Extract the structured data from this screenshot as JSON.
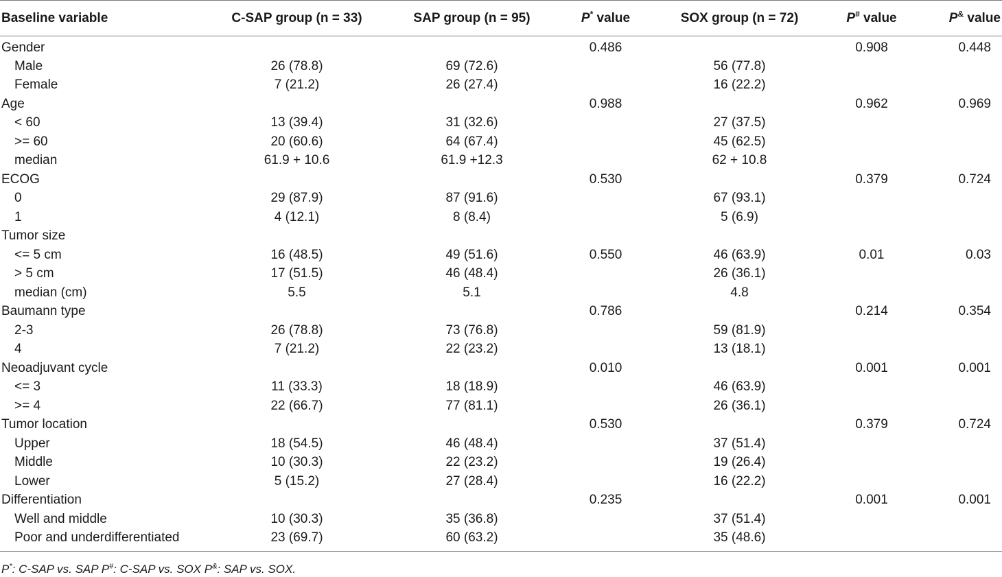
{
  "table": {
    "headers": {
      "variable": "Baseline variable",
      "csap": "C-SAP group (n = 33)",
      "sap": "SAP group (n = 95)",
      "p_star_p": "P",
      "p_star_sup": "*",
      "p_star_tail": " value",
      "sox": "SOX group (n = 72)",
      "p_hash_p": "P",
      "p_hash_sup": "#",
      "p_hash_tail": " value",
      "p_amp_p": "P",
      "p_amp_sup": "&",
      "p_amp_tail": " value"
    },
    "rows": [
      {
        "label": "Gender",
        "sub": false,
        "csap": "",
        "sap": "",
        "p1": "0.486",
        "sox": "",
        "p2": "0.908",
        "p3": "0.448"
      },
      {
        "label": "Male",
        "sub": true,
        "csap": "26 (78.8)",
        "sap": "69 (72.6)",
        "p1": "",
        "sox": "56 (77.8)",
        "p2": "",
        "p3": ""
      },
      {
        "label": "Female",
        "sub": true,
        "csap": "7 (21.2)",
        "sap": "26 (27.4)",
        "p1": "",
        "sox": "16 (22.2)",
        "p2": "",
        "p3": ""
      },
      {
        "label": "Age",
        "sub": false,
        "csap": "",
        "sap": "",
        "p1": "0.988",
        "sox": "",
        "p2": "0.962",
        "p3": "0.969"
      },
      {
        "label": "< 60",
        "sub": true,
        "csap": "13 (39.4)",
        "sap": "31 (32.6)",
        "p1": "",
        "sox": "27 (37.5)",
        "p2": "",
        "p3": ""
      },
      {
        "label": ">= 60",
        "sub": true,
        "csap": "20 (60.6)",
        "sap": "64 (67.4)",
        "p1": "",
        "sox": "45 (62.5)",
        "p2": "",
        "p3": ""
      },
      {
        "label": "median",
        "sub": true,
        "csap": "61.9 + 10.6",
        "sap": "61.9 +12.3",
        "p1": "",
        "sox": "62 + 10.8",
        "p2": "",
        "p3": ""
      },
      {
        "label": "ECOG",
        "sub": false,
        "csap": "",
        "sap": "",
        "p1": "0.530",
        "sox": "",
        "p2": "0.379",
        "p3": "0.724"
      },
      {
        "label": "0",
        "sub": true,
        "csap": "29 (87.9)",
        "sap": "87 (91.6)",
        "p1": "",
        "sox": "67 (93.1)",
        "p2": "",
        "p3": ""
      },
      {
        "label": "1",
        "sub": true,
        "csap": "4 (12.1)",
        "sap": "8 (8.4)",
        "p1": "",
        "sox": "5 (6.9)",
        "p2": "",
        "p3": ""
      },
      {
        "label": "Tumor size",
        "sub": false,
        "csap": "",
        "sap": "",
        "p1": "",
        "sox": "",
        "p2": "",
        "p3": ""
      },
      {
        "label": "<= 5 cm",
        "sub": true,
        "csap": "16 (48.5)",
        "sap": "49 (51.6)",
        "p1": "0.550",
        "sox": "46 (63.9)",
        "p2": "0.01",
        "p3": "0.03"
      },
      {
        "label": "> 5 cm",
        "sub": true,
        "csap": "17 (51.5)",
        "sap": "46 (48.4)",
        "p1": "",
        "sox": "26 (36.1)",
        "p2": "",
        "p3": ""
      },
      {
        "label": "median (cm)",
        "sub": true,
        "csap": "5.5",
        "sap": "5.1",
        "p1": "",
        "sox": "4.8",
        "p2": "",
        "p3": ""
      },
      {
        "label": "Baumann type",
        "sub": false,
        "csap": "",
        "sap": "",
        "p1": "0.786",
        "sox": "",
        "p2": "0.214",
        "p3": "0.354"
      },
      {
        "label": "2-3",
        "sub": true,
        "csap": "26 (78.8)",
        "sap": "73 (76.8)",
        "p1": "",
        "sox": "59 (81.9)",
        "p2": "",
        "p3": ""
      },
      {
        "label": "4",
        "sub": true,
        "csap": "7 (21.2)",
        "sap": "22 (23.2)",
        "p1": "",
        "sox": "13 (18.1)",
        "p2": "",
        "p3": ""
      },
      {
        "label": "Neoadjuvant cycle",
        "sub": false,
        "csap": "",
        "sap": "",
        "p1": "0.010",
        "sox": "",
        "p2": "0.001",
        "p3": "0.001"
      },
      {
        "label": "<= 3",
        "sub": true,
        "csap": "11 (33.3)",
        "sap": "18 (18.9)",
        "p1": "",
        "sox": "46 (63.9)",
        "p2": "",
        "p3": ""
      },
      {
        "label": ">= 4",
        "sub": true,
        "csap": "22 (66.7)",
        "sap": "77 (81.1)",
        "p1": "",
        "sox": "26 (36.1)",
        "p2": "",
        "p3": ""
      },
      {
        "label": "Tumor location",
        "sub": false,
        "csap": "",
        "sap": "",
        "p1": "0.530",
        "sox": "",
        "p2": "0.379",
        "p3": "0.724"
      },
      {
        "label": "Upper",
        "sub": true,
        "csap": "18 (54.5)",
        "sap": "46 (48.4)",
        "p1": "",
        "sox": "37 (51.4)",
        "p2": "",
        "p3": ""
      },
      {
        "label": "Middle",
        "sub": true,
        "csap": "10 (30.3)",
        "sap": "22 (23.2)",
        "p1": "",
        "sox": "19 (26.4)",
        "p2": "",
        "p3": ""
      },
      {
        "label": "Lower",
        "sub": true,
        "csap": "5 (15.2)",
        "sap": "27 (28.4)",
        "p1": "",
        "sox": "16 (22.2)",
        "p2": "",
        "p3": ""
      },
      {
        "label": "Differentiation",
        "sub": false,
        "csap": "",
        "sap": "",
        "p1": "0.235",
        "sox": "",
        "p2": "0.001",
        "p3": "0.001"
      },
      {
        "label": "Well and middle",
        "sub": true,
        "csap": "10 (30.3)",
        "sap": "35 (36.8)",
        "p1": "",
        "sox": "37 (51.4)",
        "p2": "",
        "p3": ""
      },
      {
        "label": "Poor and underdifferentiated",
        "sub": true,
        "csap": "23 (69.7)",
        "sap": "60 (63.2)",
        "p1": "",
        "sox": "35 (48.6)",
        "p2": "",
        "p3": ""
      }
    ]
  },
  "footnote": {
    "p1": "P",
    "s1": "*",
    "t1": ": C-SAP vs. SAP ",
    "p2": "P",
    "s2": "#",
    "t2": ": C-SAP vs. SOX ",
    "p3": "P",
    "s3": "&",
    "t3": ": SAP vs. SOX."
  }
}
